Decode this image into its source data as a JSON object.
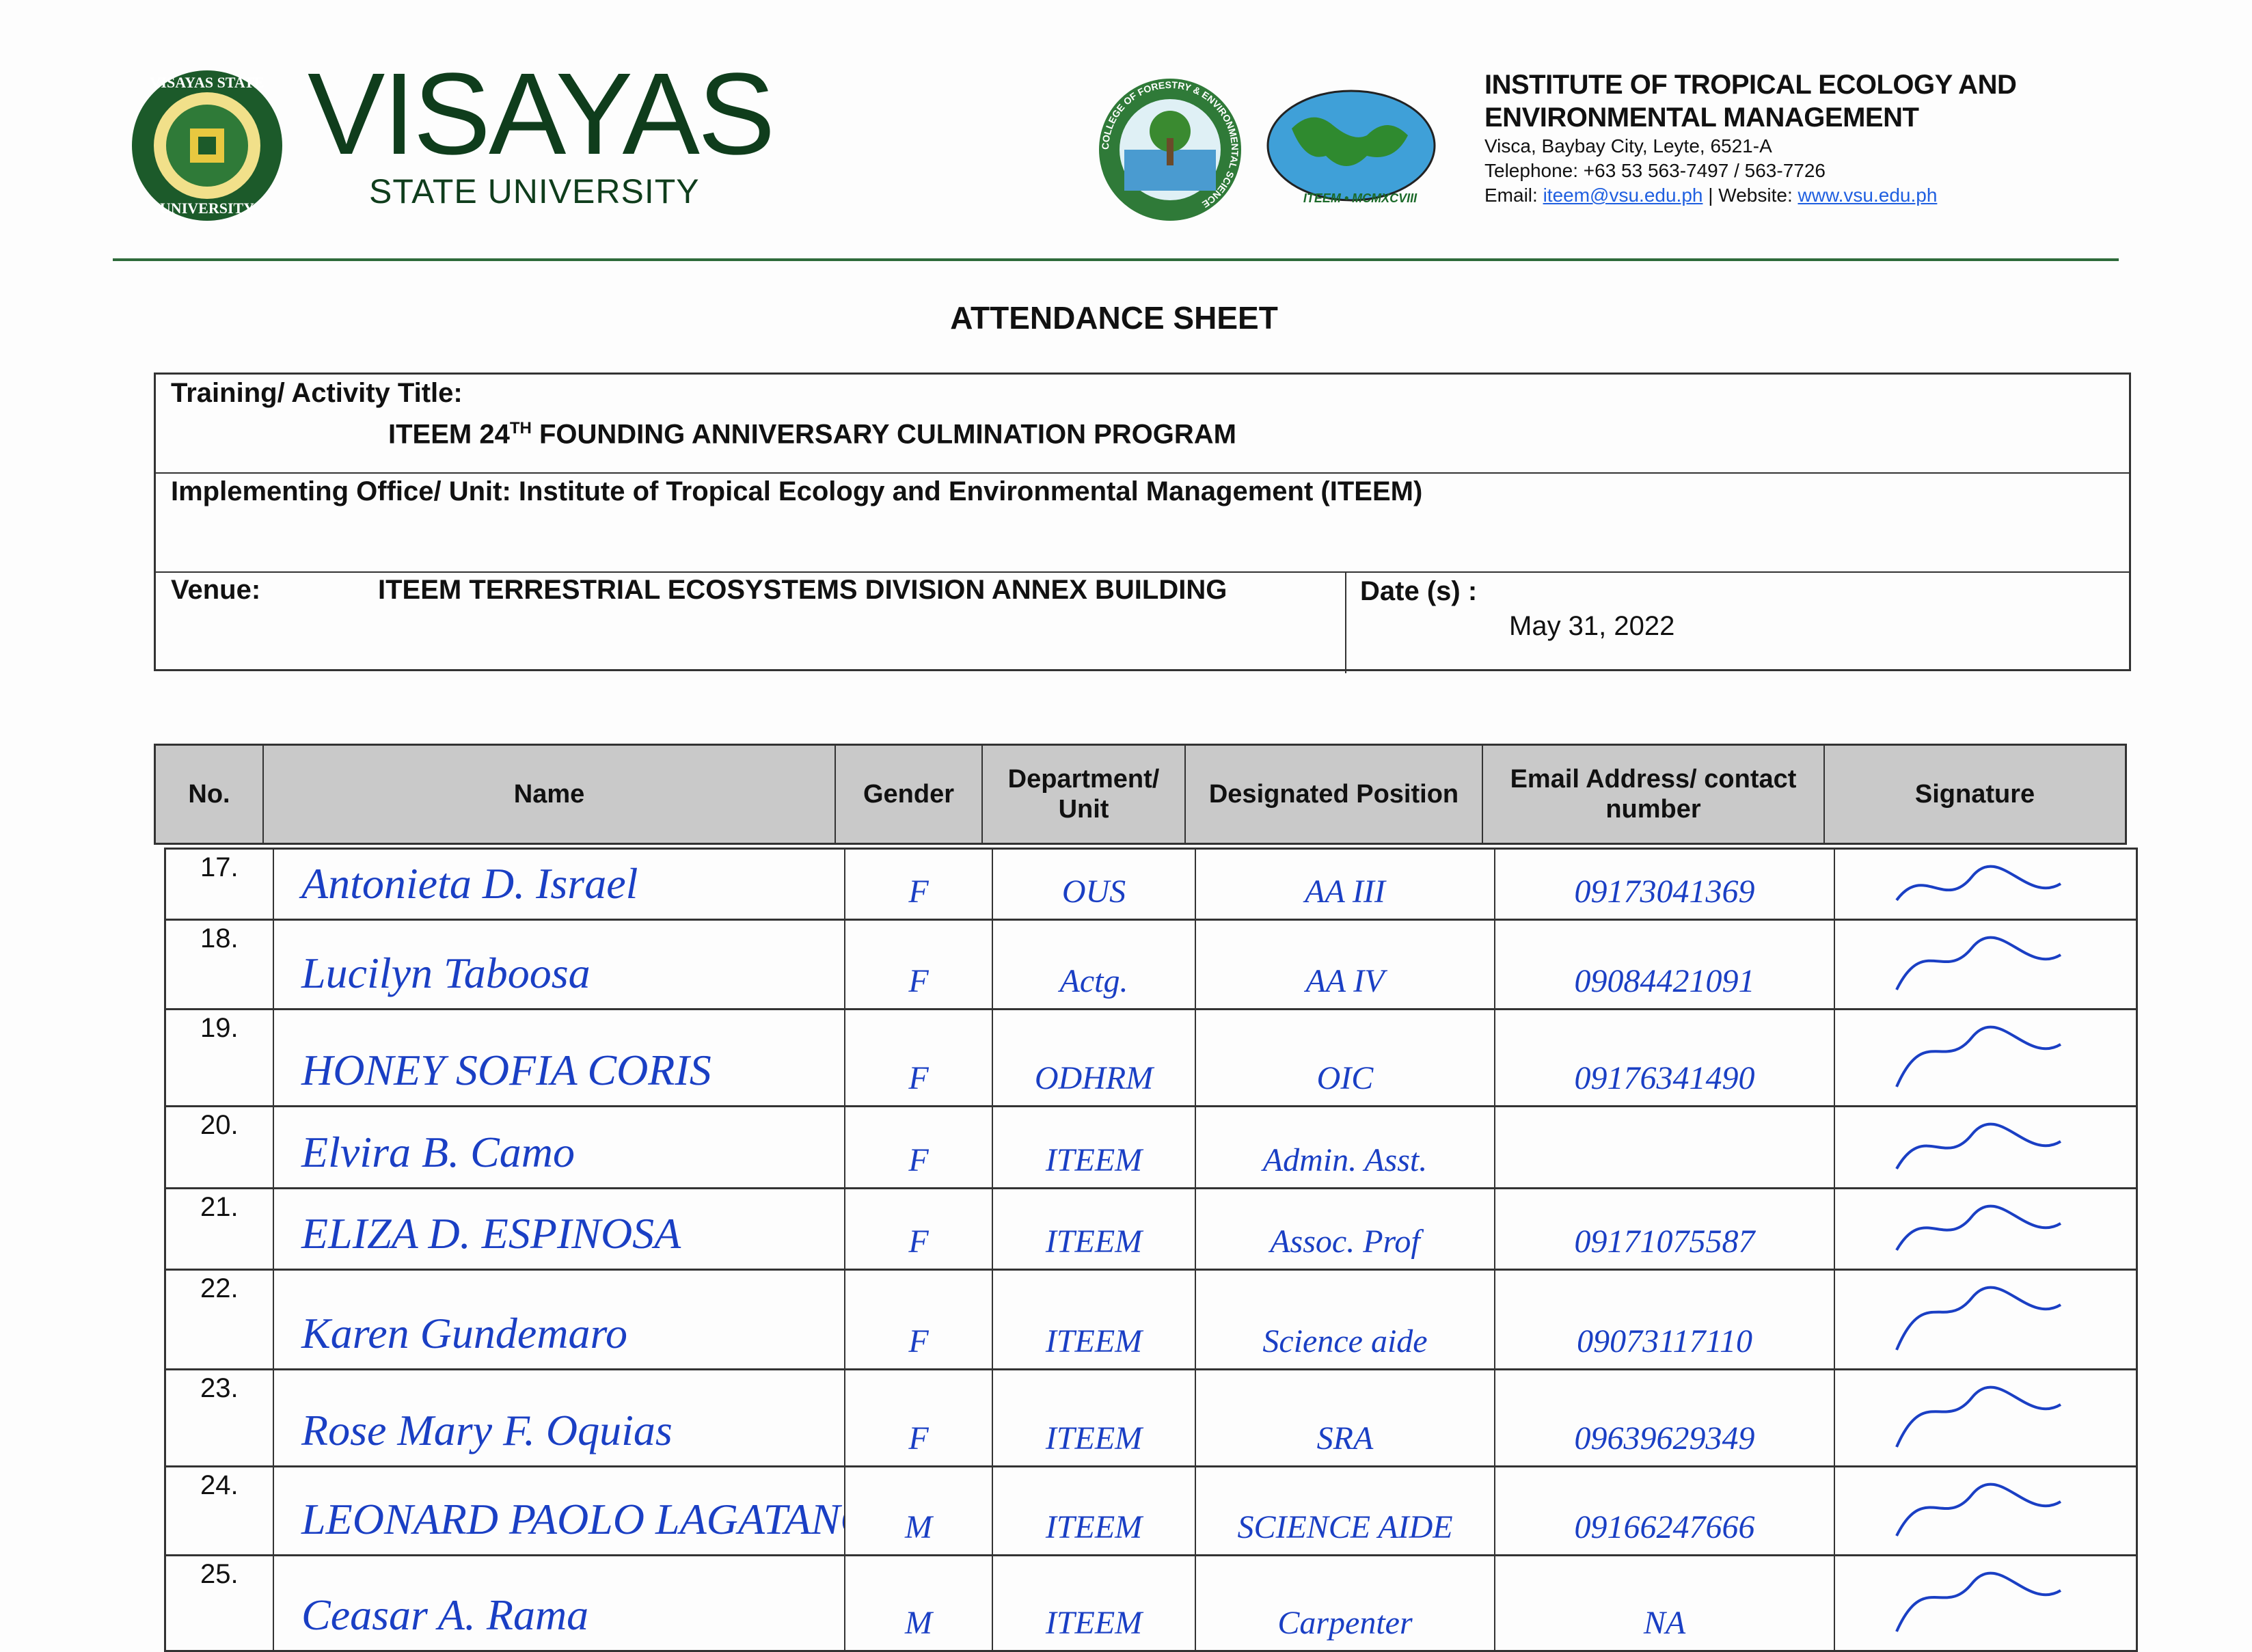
{
  "header": {
    "university_wordmark": "VISAYAS",
    "university_sub": "STATE UNIVERSITY",
    "seal_text": "VISAYAS STATE UNIVERSITY",
    "college_seal_text": "COLLEGE OF FORESTRY & ENVIRONMENTAL SCIENCE",
    "iteem_logo_text": "ITEEM • MCMXCVIII",
    "institute_line1": "INSTITUTE OF TROPICAL ECOLOGY AND",
    "institute_line2": "ENVIRONMENTAL MANAGEMENT",
    "address": "Visca, Baybay City, Leyte, 6521-A",
    "telephone": "Telephone: +63 53 563-7497 / 563-7726",
    "email_label": "Email: ",
    "email": "iteem@vsu.edu.ph",
    "website_label": " | Website: ",
    "website": "www.vsu.edu.ph",
    "accent_color": "#0f3d1c"
  },
  "title": "ATTENDANCE SHEET",
  "info": {
    "activity_label": "Training/ Activity Title:",
    "activity_value_pre": "ITEEM 24",
    "activity_value_sup": "TH",
    "activity_value_post": " FOUNDING ANNIVERSARY CULMINATION PROGRAM",
    "office_label": "Implementing Office/ Unit: Institute of Tropical Ecology and Environmental Management (ITEEM)",
    "venue_label": "Venue:",
    "venue_value": "ITEEM TERRESTRIAL ECOSYSTEMS DIVISION ANNEX BUILDING",
    "date_label": "Date (s) :",
    "date_value": "May 31, 2022"
  },
  "table": {
    "columns": [
      "No.",
      "Name",
      "Gender",
      "Department/ Unit",
      "Designated Position",
      "Email Address/ contact number",
      "Signature"
    ],
    "ink_color": "#1a3fc4",
    "rows": [
      {
        "no": "17.",
        "name": "Antonieta D. Israel",
        "gender": "F",
        "dept": "OUS",
        "position": "AA III",
        "contact": "09173041369",
        "signature": "[signature]"
      },
      {
        "no": "18.",
        "name": "Lucilyn Taboosa",
        "gender": "F",
        "dept": "Actg.",
        "position": "AA IV",
        "contact": "09084421091",
        "signature": "[signature]"
      },
      {
        "no": "19.",
        "name": "HONEY SOFIA CORIS",
        "gender": "F",
        "dept": "ODHRM",
        "position": "OIC",
        "contact": "09176341490",
        "signature": "[signature]"
      },
      {
        "no": "20.",
        "name": "Elvira B. Camo",
        "gender": "F",
        "dept": "ITEEM",
        "position": "Admin. Asst.",
        "contact": "",
        "signature": "[signature]"
      },
      {
        "no": "21.",
        "name": "ELIZA D. ESPINOSA",
        "gender": "F",
        "dept": "ITEEM",
        "position": "Assoc. Prof",
        "contact": "09171075587",
        "signature": "[signature]"
      },
      {
        "no": "22.",
        "name": "Karen Gundemaro",
        "gender": "F",
        "dept": "ITEEM",
        "position": "Science aide",
        "contact": "09073117110",
        "signature": "[signature]"
      },
      {
        "no": "23.",
        "name": "Rose Mary F. Oquias",
        "gender": "F",
        "dept": "ITEEM",
        "position": "SRA",
        "contact": "09639629349",
        "signature": "[signature]"
      },
      {
        "no": "24.",
        "name": "LEONARD PAOLO LAGATANG",
        "gender": "M",
        "dept": "ITEEM",
        "position": "SCIENCE AIDE",
        "contact": "09166247666",
        "signature": "[signature]"
      },
      {
        "no": "25.",
        "name": "Ceasar A. Rama",
        "gender": "M",
        "dept": "ITEEM",
        "position": "Carpenter",
        "contact": "NA",
        "signature": "[signature]"
      }
    ]
  }
}
